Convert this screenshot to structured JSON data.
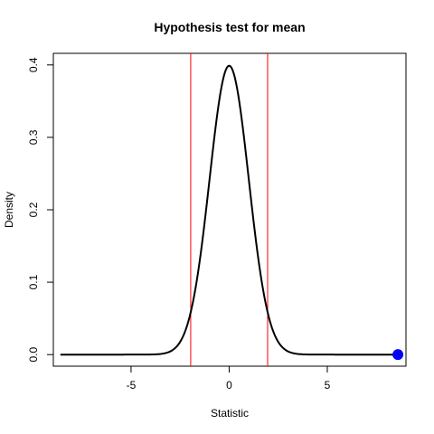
{
  "chart_data": {
    "type": "line",
    "title": "Hypothesis test for mean",
    "xlabel": "Statistic",
    "ylabel": "Density",
    "xlim": [
      -8.96,
      9.01
    ],
    "ylim": [
      0,
      0.4
    ],
    "x_ticks": [
      -5,
      0,
      5
    ],
    "x_tick_labels": [
      "-5",
      "0",
      "5"
    ],
    "y_ticks": [
      0.0,
      0.1,
      0.2,
      0.3,
      0.4
    ],
    "y_tick_labels": [
      "0.0",
      "0.1",
      "0.2",
      "0.3",
      "0.4"
    ],
    "grid": false,
    "legend": "none",
    "curve": {
      "distribution": "standard normal density",
      "x_range": [
        -8.6,
        8.6
      ],
      "peak": [
        0,
        0.399
      ],
      "color": "#000000"
    },
    "critical_values": [
      -1.96,
      1.96
    ],
    "critical_line_color": "#ff0000",
    "observed_statistic": {
      "x": 8.6,
      "y": 0,
      "color": "#0000ff"
    }
  }
}
